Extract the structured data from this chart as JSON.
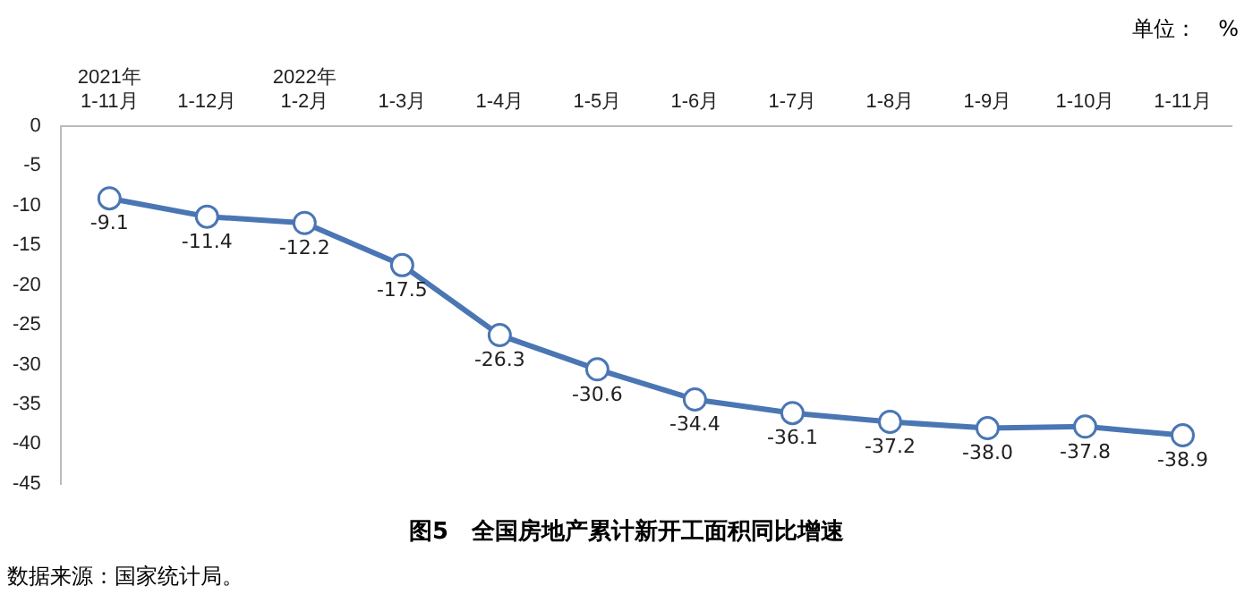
{
  "chart_data": {
    "type": "line",
    "title": "图5　全国房地产累计新开工面积同比增速",
    "categories": [
      "2021年\n1-11月",
      "1-12月",
      "2022年\n1-2月",
      "1-3月",
      "1-4月",
      "1-5月",
      "1-6月",
      "1-7月",
      "1-8月",
      "1-9月",
      "1-10月",
      "1-11月"
    ],
    "series": [
      {
        "color": "#4a76b4",
        "values": [
          -9.1,
          -11.4,
          -12.2,
          -17.5,
          -26.3,
          -30.6,
          -34.4,
          -36.1,
          -37.2,
          -38.0,
          -37.8,
          -38.9
        ],
        "value_labels": [
          "-9.1",
          "-11.4",
          "-12.2",
          "-17.5",
          "-26.3",
          "-30.6",
          "-34.4",
          "-36.1",
          "-37.2",
          "-38.0",
          "-37.8",
          "-38.9"
        ]
      }
    ],
    "ylim": [
      -45,
      0
    ],
    "yticks": [
      -45,
      -40,
      -35,
      -30,
      -25,
      -20,
      -15,
      -10,
      -5,
      0
    ],
    "grid": false,
    "legend": false,
    "marker": "circle",
    "line_style": "solid",
    "annotations": [
      "单位：　%",
      "数据来源：国家统计局。"
    ]
  }
}
